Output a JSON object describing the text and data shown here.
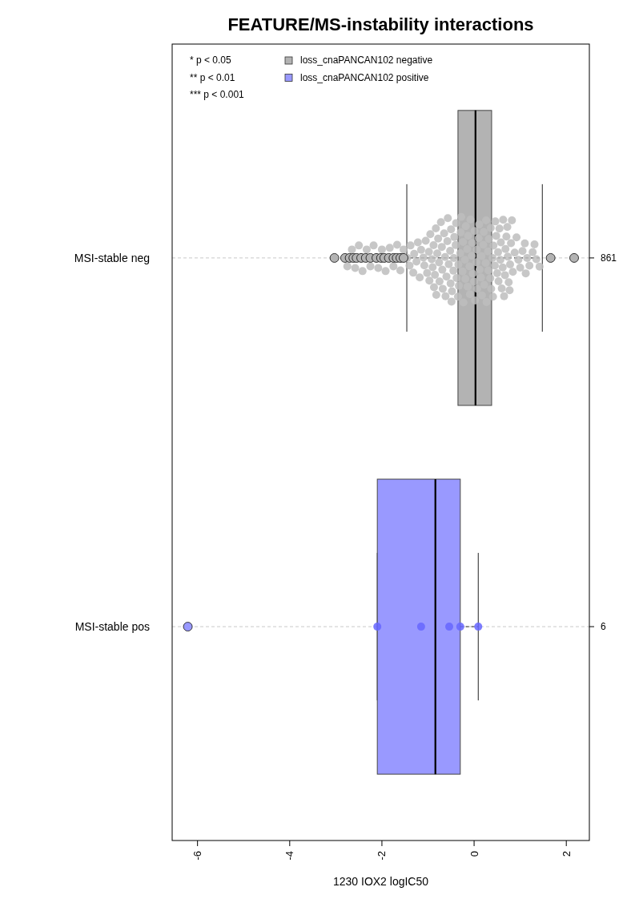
{
  "chart_data": {
    "type": "box",
    "title": "FEATURE/MS-instability interactions",
    "xlabel": "1230 IOX2 logIC50",
    "orientation": "horizontal",
    "categories": [
      "MSI-stable neg",
      "MSI-stable pos"
    ],
    "y2_categories": [
      "861",
      "6"
    ],
    "xlim": [
      -6.55,
      2.5
    ],
    "xticks": [
      -6,
      -4,
      -2,
      0,
      2
    ],
    "grid": "y",
    "legend": "top left",
    "annotations": [
      "* p < 0.05",
      "** p < 0.01",
      "*** p < 0.001"
    ],
    "series": [
      {
        "name": "loss_cnaPANCAN102 negative",
        "color": "#b3b3b3",
        "boxes": [
          {
            "low": -1.46,
            "q1": -0.35,
            "median": 0.03,
            "q3": 0.38,
            "high": 1.48,
            "outliers": [
              -3.03,
              -2.8,
              -2.7,
              -2.62,
              -2.55,
              -2.45,
              -2.35,
              -2.25,
              -2.12,
              -2.02,
              -1.95,
              -1.85,
              -1.75,
              -1.68,
              -1.6,
              -1.53,
              1.66,
              2.17
            ]
          },
          null
        ]
      },
      {
        "name": "loss_cnaPANCAN102 positive",
        "color": "#9999ff",
        "boxes": [
          null,
          {
            "low": -2.1,
            "q1": -2.1,
            "median": -0.84,
            "q3": -0.3,
            "high": 0.09,
            "outliers": [
              -6.21
            ]
          }
        ]
      },
      {
        "type": "scatter",
        "color": "#bdbdbd",
        "x": [
          "MSI-stable neg",
          "MSI-stable neg",
          "MSI-stable neg",
          "MSI-stable neg",
          "MSI-stable neg",
          "MSI-stable neg",
          "MSI-stable neg",
          "MSI-stable neg",
          "MSI-stable neg",
          "MSI-stable neg",
          "MSI-stable neg",
          "MSI-stable neg",
          "MSI-stable neg",
          "MSI-stable neg",
          "MSI-stable neg",
          "MSI-stable neg",
          "MSI-stable neg",
          "MSI-stable neg",
          "MSI-stable neg",
          "MSI-stable neg",
          "MSI-stable neg",
          "MSI-stable neg",
          "MSI-stable neg",
          "MSI-stable neg",
          "MSI-stable neg",
          "MSI-stable neg",
          "MSI-stable neg",
          "MSI-stable neg",
          "MSI-stable neg",
          "MSI-stable neg",
          "MSI-stable neg",
          "MSI-stable neg",
          "MSI-stable neg",
          "MSI-stable neg",
          "MSI-stable neg",
          "MSI-stable neg",
          "MSI-stable neg",
          "MSI-stable neg",
          "MSI-stable neg",
          "MSI-stable neg",
          "MSI-stable neg",
          "MSI-stable neg",
          "MSI-stable neg",
          "MSI-stable neg",
          "MSI-stable neg",
          "MSI-stable neg",
          "MSI-stable neg",
          "MSI-stable neg",
          "MSI-stable neg",
          "MSI-stable neg",
          "MSI-stable neg",
          "MSI-stable neg",
          "MSI-stable neg",
          "MSI-stable neg",
          "MSI-stable neg",
          "MSI-stable neg",
          "MSI-stable neg",
          "MSI-stable neg",
          "MSI-stable neg",
          "MSI-stable neg",
          "MSI-stable neg",
          "MSI-stable neg",
          "MSI-stable neg",
          "MSI-stable neg",
          "MSI-stable neg",
          "MSI-stable neg",
          "MSI-stable neg",
          "MSI-stable neg",
          "MSI-stable neg",
          "MSI-stable neg",
          "MSI-stable neg",
          "MSI-stable neg",
          "MSI-stable neg",
          "MSI-stable neg",
          "MSI-stable neg",
          "MSI-stable neg",
          "MSI-stable neg",
          "MSI-stable neg",
          "MSI-stable neg",
          "MSI-stable neg",
          "MSI-stable neg",
          "MSI-stable neg",
          "MSI-stable neg",
          "MSI-stable neg",
          "MSI-stable neg",
          "MSI-stable neg",
          "MSI-stable neg",
          "MSI-stable neg",
          "MSI-stable neg",
          "MSI-stable neg",
          "MSI-stable neg",
          "MSI-stable neg",
          "MSI-stable neg",
          "MSI-stable neg",
          "MSI-stable neg",
          "MSI-stable neg",
          "MSI-stable neg",
          "MSI-stable neg",
          "MSI-stable neg",
          "MSI-stable neg",
          "MSI-stable neg",
          "MSI-stable neg",
          "MSI-stable neg",
          "MSI-stable neg",
          "MSI-stable neg",
          "MSI-stable neg",
          "MSI-stable neg",
          "MSI-stable neg",
          "MSI-stable neg",
          "MSI-stable neg",
          "MSI-stable neg",
          "MSI-stable neg",
          "MSI-stable neg",
          "MSI-stable neg",
          "MSI-stable neg",
          "MSI-stable neg",
          "MSI-stable neg",
          "MSI-stable neg",
          "MSI-stable neg",
          "MSI-stable neg",
          "MSI-stable neg",
          "MSI-stable neg",
          "MSI-stable neg",
          "MSI-stable neg",
          "MSI-stable neg",
          "MSI-stable neg",
          "MSI-stable neg",
          "MSI-stable neg",
          "MSI-stable neg",
          "MSI-stable neg",
          "MSI-stable neg",
          "MSI-stable neg",
          "MSI-stable neg",
          "MSI-stable neg",
          "MSI-stable neg",
          "MSI-stable neg",
          "MSI-stable neg",
          "MSI-stable neg",
          "MSI-stable neg",
          "MSI-stable neg",
          "MSI-stable neg",
          "MSI-stable neg",
          "MSI-stable neg",
          "MSI-stable neg",
          "MSI-stable neg",
          "MSI-stable neg",
          "MSI-stable neg",
          "MSI-stable neg",
          "MSI-stable neg",
          "MSI-stable neg"
        ],
        "values": [
          -2.75,
          -2.65,
          -2.58,
          -2.5,
          -2.42,
          -2.33,
          -2.25,
          -2.18,
          -2.08,
          -2.0,
          -1.92,
          -1.83,
          -1.75,
          -1.67,
          -1.6,
          -1.53,
          -1.45,
          -1.4,
          -1.38,
          -1.32,
          -1.3,
          -1.25,
          -1.22,
          -1.18,
          -1.15,
          -1.1,
          -1.08,
          -1.05,
          -1.02,
          -0.98,
          -0.95,
          -0.92,
          -0.9,
          -0.87,
          -0.85,
          -0.82,
          -0.8,
          -0.78,
          -0.75,
          -0.72,
          -0.7,
          -0.68,
          -0.65,
          -0.62,
          -0.6,
          -0.58,
          -0.55,
          -0.52,
          -0.97,
          -0.88,
          -0.83,
          -0.76,
          -0.69,
          -0.63,
          -0.57,
          -0.51,
          -0.5,
          -0.48,
          -0.45,
          -0.43,
          -0.4,
          -0.38,
          -0.35,
          -0.33,
          -0.3,
          -0.28,
          -0.25,
          -0.23,
          -0.2,
          -0.18,
          -0.15,
          -0.13,
          -0.1,
          -0.08,
          -0.05,
          -0.03,
          -0.49,
          -0.44,
          -0.39,
          -0.34,
          -0.29,
          -0.24,
          -0.19,
          -0.14,
          -0.09,
          -0.04,
          0.0,
          0.02,
          0.05,
          0.07,
          0.1,
          0.12,
          0.15,
          0.17,
          0.2,
          0.22,
          0.25,
          0.27,
          0.3,
          0.32,
          0.35,
          0.37,
          0.4,
          0.42,
          0.45,
          0.48,
          0.01,
          0.06,
          0.11,
          0.16,
          0.21,
          0.26,
          0.31,
          0.36,
          0.41,
          0.46,
          0.5,
          0.53,
          0.55,
          0.58,
          0.6,
          0.63,
          0.65,
          0.68,
          0.7,
          0.73,
          0.75,
          0.78,
          0.8,
          0.84,
          0.88,
          0.92,
          0.96,
          0.52,
          0.57,
          0.62,
          0.67,
          0.72,
          0.77,
          0.82,
          1.0,
          1.05,
          1.1,
          1.15,
          1.2,
          1.27,
          1.35,
          1.42,
          1.12,
          1.31
        ]
      },
      {
        "type": "scatter",
        "color": "#6666ff",
        "x": [
          "MSI-stable pos",
          "MSI-stable pos",
          "MSI-stable pos",
          "MSI-stable pos",
          "MSI-stable pos"
        ],
        "values": [
          -2.1,
          -1.15,
          -0.54,
          -0.3,
          0.09
        ]
      }
    ]
  }
}
